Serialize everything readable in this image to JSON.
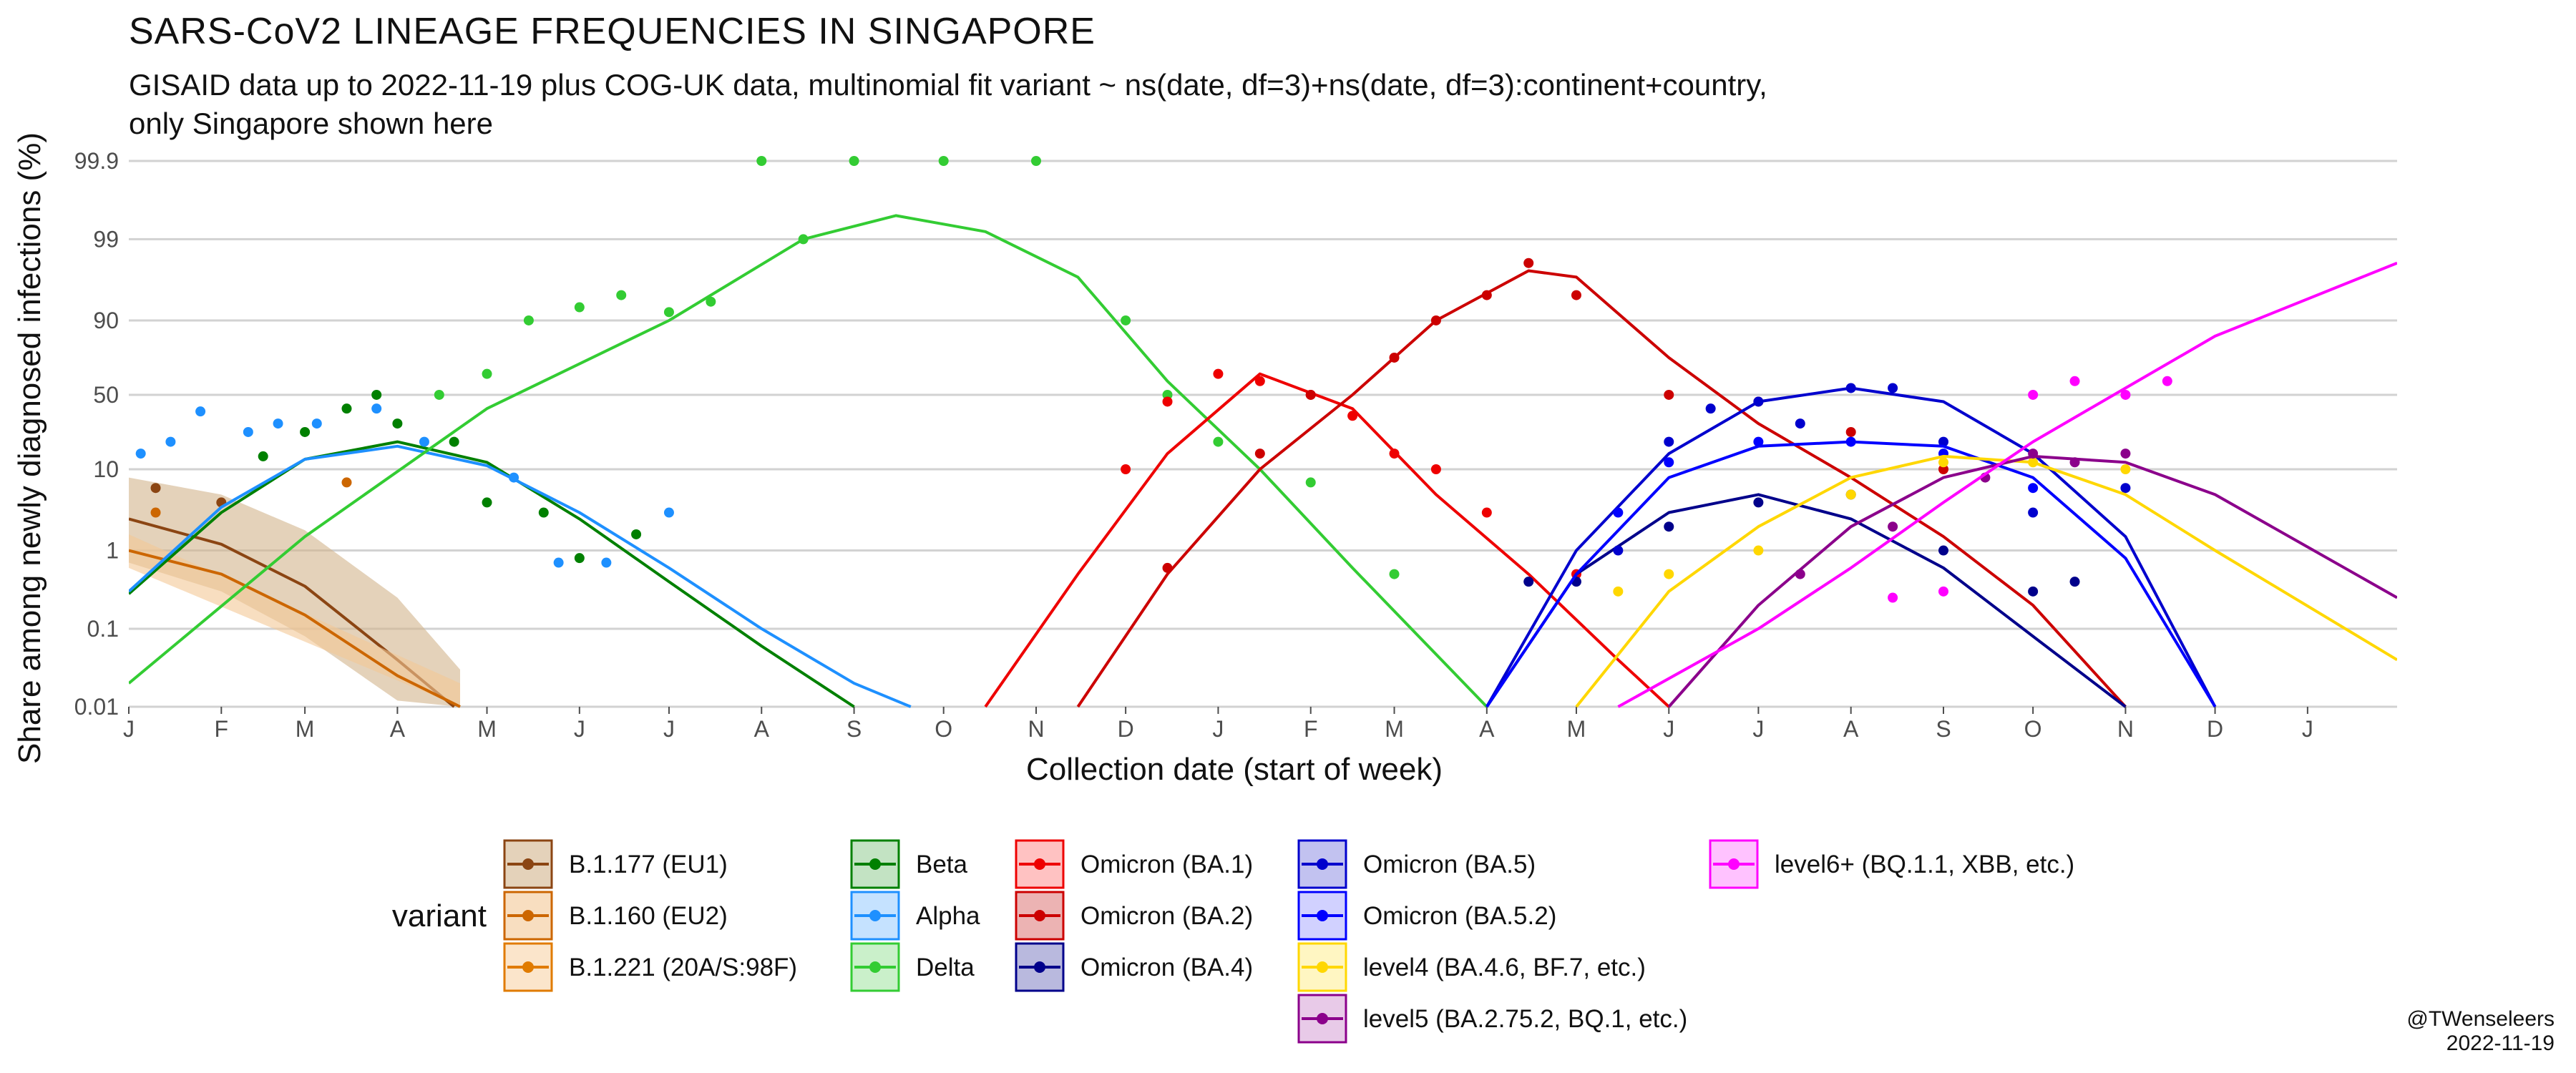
{
  "title": "SARS-CoV2 LINEAGE FREQUENCIES IN SINGAPORE",
  "subtitle": "GISAID data up to 2022-11-19 plus COG-UK data, multinomial fit variant ~ ns(date, df=3)+ns(date, df=3):continent+country,\nonly Singapore shown here",
  "credit": {
    "handle": "@TWenseleers",
    "date": "2022-11-19"
  },
  "chart_data": {
    "type": "line",
    "xlabel": "Collection date (start of week)",
    "ylabel": "Share among newly diagnosed infections (%)",
    "x_scale": "date",
    "y_scale": "logit",
    "xlim": [
      "2021-01-01",
      "2023-01-31"
    ],
    "ylim": [
      0.01,
      99.9
    ],
    "x_ticks": [
      {
        "date": "2021-01-01",
        "label": "J"
      },
      {
        "date": "2021-02-01",
        "label": "F"
      },
      {
        "date": "2021-03-01",
        "label": "M"
      },
      {
        "date": "2021-04-01",
        "label": "A"
      },
      {
        "date": "2021-05-01",
        "label": "M"
      },
      {
        "date": "2021-06-01",
        "label": "J"
      },
      {
        "date": "2021-07-01",
        "label": "J"
      },
      {
        "date": "2021-08-01",
        "label": "A"
      },
      {
        "date": "2021-09-01",
        "label": "S"
      },
      {
        "date": "2021-10-01",
        "label": "O"
      },
      {
        "date": "2021-11-01",
        "label": "N"
      },
      {
        "date": "2021-12-01",
        "label": "D"
      },
      {
        "date": "2022-01-01",
        "label": "J"
      },
      {
        "date": "2022-02-01",
        "label": "F"
      },
      {
        "date": "2022-03-01",
        "label": "M"
      },
      {
        "date": "2022-04-01",
        "label": "A"
      },
      {
        "date": "2022-05-01",
        "label": "M"
      },
      {
        "date": "2022-06-01",
        "label": "J"
      },
      {
        "date": "2022-07-01",
        "label": "J"
      },
      {
        "date": "2022-08-01",
        "label": "A"
      },
      {
        "date": "2022-09-01",
        "label": "S"
      },
      {
        "date": "2022-10-01",
        "label": "O"
      },
      {
        "date": "2022-11-01",
        "label": "N"
      },
      {
        "date": "2022-12-01",
        "label": "D"
      },
      {
        "date": "2023-01-01",
        "label": "J"
      }
    ],
    "y_ticks": [
      {
        "value": 0.01,
        "label": "0.01"
      },
      {
        "value": 0.1,
        "label": "0.1"
      },
      {
        "value": 1,
        "label": "1"
      },
      {
        "value": 10,
        "label": "10"
      },
      {
        "value": 50,
        "label": "50"
      },
      {
        "value": 90,
        "label": "90"
      },
      {
        "value": 99,
        "label": "99"
      },
      {
        "value": 99.9,
        "label": "99.9"
      }
    ],
    "grid": true,
    "legend": {
      "title": "variant",
      "position": "bottom"
    },
    "series": [
      {
        "name": "B.1.177 (EU1)",
        "color": "#8B4513",
        "fill": "#D2B48C",
        "fit": {
          "x": [
            "2021-01-01",
            "2021-02-01",
            "2021-03-01",
            "2021-04-01",
            "2021-04-20"
          ],
          "y": [
            2.5,
            1.2,
            0.35,
            0.04,
            0.01
          ]
        },
        "band": {
          "x": [
            "2021-01-01",
            "2021-02-01",
            "2021-03-01",
            "2021-04-01",
            "2021-04-22"
          ],
          "lo": [
            0.7,
            0.3,
            0.08,
            0.012,
            0.01
          ],
          "hi": [
            8,
            5,
            1.8,
            0.25,
            0.03
          ]
        },
        "points": {
          "x": [
            "2021-01-10",
            "2021-02-01"
          ],
          "y": [
            6,
            4
          ]
        }
      },
      {
        "name": "B.1.160 (EU2)",
        "color": "#CC6600",
        "fill": "#F4C896",
        "fit": {
          "x": [
            "2021-01-01",
            "2021-02-01",
            "2021-03-01",
            "2021-04-01",
            "2021-04-22"
          ],
          "y": [
            1.0,
            0.5,
            0.15,
            0.025,
            0.01
          ]
        },
        "band": {
          "x": [
            "2021-01-01",
            "2021-04-22"
          ],
          "lo": [
            0.6,
            0.01
          ],
          "hi": [
            1.6,
            0.02
          ]
        },
        "points": {
          "x": [
            "2021-01-10",
            "2021-03-15"
          ],
          "y": [
            3,
            7
          ]
        }
      },
      {
        "name": "B.1.221 (20A/S:98F)",
        "color": "#E07B00",
        "fill": "#F8D3A8",
        "fit": {
          "x": [],
          "y": []
        },
        "band": null,
        "points": {
          "x": [],
          "y": []
        }
      },
      {
        "name": "Beta",
        "color": "#008000",
        "fill": "#9BD19B",
        "fit": {
          "x": [
            "2021-01-01",
            "2021-02-01",
            "2021-03-01",
            "2021-04-01",
            "2021-05-01",
            "2021-06-01",
            "2021-07-01",
            "2021-08-01",
            "2021-09-01"
          ],
          "y": [
            0.28,
            3,
            13,
            20,
            12,
            2.5,
            0.4,
            0.06,
            0.01
          ]
        },
        "points": {
          "x": [
            "2021-02-15",
            "2021-03-01",
            "2021-03-15",
            "2021-03-25",
            "2021-04-01",
            "2021-04-20",
            "2021-05-01",
            "2021-05-20",
            "2021-06-01",
            "2021-06-20"
          ],
          "y": [
            14,
            25,
            40,
            50,
            30,
            20,
            4,
            3,
            0.8,
            1.6
          ]
        }
      },
      {
        "name": "Alpha",
        "color": "#1E90FF",
        "fill": "#9ECFFF",
        "fit": {
          "x": [
            "2021-01-01",
            "2021-02-01",
            "2021-03-01",
            "2021-04-01",
            "2021-05-01",
            "2021-06-01",
            "2021-07-01",
            "2021-08-01",
            "2021-09-01",
            "2021-09-20"
          ],
          "y": [
            0.3,
            3.5,
            13,
            18,
            11,
            3,
            0.6,
            0.1,
            0.02,
            0.01
          ]
        },
        "points": {
          "x": [
            "2021-01-05",
            "2021-01-15",
            "2021-01-25",
            "2021-02-10",
            "2021-02-20",
            "2021-03-05",
            "2021-03-25",
            "2021-04-10",
            "2021-05-10",
            "2021-05-25",
            "2021-06-10",
            "2021-07-01"
          ],
          "y": [
            15,
            20,
            38,
            25,
            30,
            30,
            40,
            20,
            8,
            0.7,
            0.7,
            3
          ]
        }
      },
      {
        "name": "Delta",
        "color": "#33CC33",
        "fill": "#A6E6A6",
        "fit": {
          "x": [
            "2021-01-01",
            "2021-03-01",
            "2021-05-01",
            "2021-07-01",
            "2021-08-15",
            "2021-09-15",
            "2021-10-15",
            "2021-11-15",
            "2021-12-15",
            "2022-01-15",
            "2022-02-15",
            "2022-04-01"
          ],
          "y": [
            0.02,
            1.5,
            40,
            90,
            99,
            99.5,
            99.2,
            97,
            60,
            10,
            0.6,
            0.01
          ]
        },
        "points": {
          "x": [
            "2021-04-15",
            "2021-05-01",
            "2021-05-15",
            "2021-06-01",
            "2021-06-15",
            "2021-07-01",
            "2021-07-15",
            "2021-08-01",
            "2021-08-15",
            "2021-09-01",
            "2021-10-01",
            "2021-11-01",
            "2021-12-01",
            "2021-12-15",
            "2022-01-01",
            "2022-02-01",
            "2022-03-01"
          ],
          "y": [
            50,
            65,
            90,
            93,
            95,
            92,
            94,
            99.9,
            99,
            99.9,
            99.9,
            99.9,
            90,
            50,
            20,
            7,
            0.5
          ]
        }
      },
      {
        "name": "Omicron (BA.1)",
        "color": "#EE0000",
        "fill": "#FF9999",
        "fit": {
          "x": [
            "2021-10-15",
            "2021-11-15",
            "2021-12-15",
            "2022-01-15",
            "2022-02-15",
            "2022-03-15",
            "2022-04-15",
            "2022-05-15",
            "2022-06-01"
          ],
          "y": [
            0.01,
            0.5,
            15,
            65,
            40,
            5,
            0.5,
            0.04,
            0.01
          ]
        },
        "points": {
          "x": [
            "2021-12-01",
            "2021-12-15",
            "2022-01-01",
            "2022-01-15",
            "2022-02-01",
            "2022-02-15",
            "2022-03-01",
            "2022-03-15",
            "2022-04-01",
            "2022-05-01"
          ],
          "y": [
            10,
            45,
            65,
            60,
            50,
            35,
            15,
            10,
            3,
            0.5
          ]
        }
      },
      {
        "name": "Omicron (BA.2)",
        "color": "#CC0000",
        "fill": "#E08080",
        "fit": {
          "x": [
            "2021-11-15",
            "2021-12-15",
            "2022-01-15",
            "2022-02-15",
            "2022-03-15",
            "2022-04-15",
            "2022-05-01",
            "2022-06-01",
            "2022-07-01",
            "2022-08-01",
            "2022-09-01",
            "2022-10-01",
            "2022-11-01"
          ],
          "y": [
            0.01,
            0.5,
            10,
            50,
            90,
            97.5,
            97,
            75,
            30,
            8,
            1.5,
            0.2,
            0.01
          ]
        },
        "points": {
          "x": [
            "2021-12-15",
            "2022-01-15",
            "2022-02-01",
            "2022-03-01",
            "2022-03-15",
            "2022-04-01",
            "2022-04-15",
            "2022-05-01",
            "2022-06-01",
            "2022-07-01",
            "2022-08-01",
            "2022-09-01"
          ],
          "y": [
            0.6,
            15,
            50,
            75,
            90,
            95,
            98,
            95,
            50,
            45,
            25,
            10
          ]
        }
      },
      {
        "name": "Omicron (BA.4)",
        "color": "#00008B",
        "fill": "#8A8AC8",
        "fit": {
          "x": [
            "2022-04-01",
            "2022-05-01",
            "2022-06-01",
            "2022-07-01",
            "2022-08-01",
            "2022-09-01",
            "2022-10-01",
            "2022-11-01"
          ],
          "y": [
            0.01,
            0.5,
            3,
            5,
            2.5,
            0.6,
            0.08,
            0.01
          ]
        },
        "points": {
          "x": [
            "2022-04-15",
            "2022-05-01",
            "2022-06-01",
            "2022-07-01",
            "2022-08-01",
            "2022-09-01",
            "2022-10-01",
            "2022-10-15"
          ],
          "y": [
            0.4,
            0.4,
            2,
            4,
            5,
            1,
            0.3,
            0.4
          ]
        }
      },
      {
        "name": "Omicron (BA.5)",
        "color": "#0000CD",
        "fill": "#9999E6",
        "fit": {
          "x": [
            "2022-04-01",
            "2022-05-01",
            "2022-06-01",
            "2022-07-01",
            "2022-08-01",
            "2022-09-01",
            "2022-10-01",
            "2022-11-01",
            "2022-12-01"
          ],
          "y": [
            0.01,
            1,
            15,
            45,
            55,
            45,
            15,
            1.5,
            0.01
          ]
        },
        "points": {
          "x": [
            "2022-05-15",
            "2022-06-01",
            "2022-06-15",
            "2022-07-01",
            "2022-07-15",
            "2022-08-01",
            "2022-08-15",
            "2022-09-01",
            "2022-10-01",
            "2022-11-01"
          ],
          "y": [
            1,
            20,
            40,
            45,
            30,
            55,
            55,
            20,
            3,
            6
          ]
        }
      },
      {
        "name": "Omicron (BA.5.2)",
        "color": "#0000FF",
        "fill": "#B3B3FF",
        "fit": {
          "x": [
            "2022-04-01",
            "2022-05-01",
            "2022-06-01",
            "2022-07-01",
            "2022-08-01",
            "2022-09-01",
            "2022-10-01",
            "2022-11-01",
            "2022-12-01"
          ],
          "y": [
            0.01,
            0.5,
            8,
            18,
            20,
            18,
            8,
            0.8,
            0.01
          ]
        },
        "points": {
          "x": [
            "2022-05-15",
            "2022-06-01",
            "2022-07-01",
            "2022-08-01",
            "2022-09-01",
            "2022-10-01"
          ],
          "y": [
            3,
            12,
            20,
            20,
            15,
            6
          ]
        }
      },
      {
        "name": "level4 (BA.4.6, BF.7, etc.)",
        "color": "#FFD700",
        "fill": "#FFF099",
        "fit": {
          "x": [
            "2022-05-01",
            "2022-06-01",
            "2022-07-01",
            "2022-08-01",
            "2022-09-01",
            "2022-10-01",
            "2022-11-01",
            "2022-12-01",
            "2023-01-31"
          ],
          "y": [
            0.01,
            0.3,
            2,
            8,
            14,
            12,
            5,
            1,
            0.04
          ]
        },
        "points": {
          "x": [
            "2022-05-15",
            "2022-06-01",
            "2022-07-01",
            "2022-08-01",
            "2022-09-01",
            "2022-10-01",
            "2022-11-01"
          ],
          "y": [
            0.3,
            0.5,
            1,
            5,
            12,
            12,
            10
          ]
        }
      },
      {
        "name": "level5 (BA.2.75.2, BQ.1, etc.)",
        "color": "#8B008B",
        "fill": "#D9A6D9",
        "fit": {
          "x": [
            "2022-06-01",
            "2022-07-01",
            "2022-08-01",
            "2022-09-01",
            "2022-10-01",
            "2022-11-01",
            "2022-12-01",
            "2023-01-31"
          ],
          "y": [
            0.01,
            0.2,
            2,
            8,
            14,
            12,
            5,
            0.25
          ]
        },
        "points": {
          "x": [
            "2022-07-15",
            "2022-08-15",
            "2022-09-15",
            "2022-10-01",
            "2022-10-15",
            "2022-11-01"
          ],
          "y": [
            0.5,
            2,
            8,
            15,
            12,
            15
          ]
        }
      },
      {
        "name": "level6+ (BQ.1.1, XBB, etc.)",
        "color": "#FF00FF",
        "fill": "#FF99FF",
        "fit": {
          "x": [
            "2022-05-15",
            "2022-07-01",
            "2022-08-01",
            "2022-09-01",
            "2022-10-01",
            "2022-11-01",
            "2022-12-01",
            "2023-01-31"
          ],
          "y": [
            0.01,
            0.1,
            0.6,
            4,
            20,
            55,
            85,
            98
          ]
        },
        "points": {
          "x": [
            "2022-08-15",
            "2022-09-01",
            "2022-10-01",
            "2022-10-15",
            "2022-11-01",
            "2022-11-15"
          ],
          "y": [
            0.25,
            0.3,
            50,
            60,
            50,
            60
          ]
        }
      }
    ]
  }
}
